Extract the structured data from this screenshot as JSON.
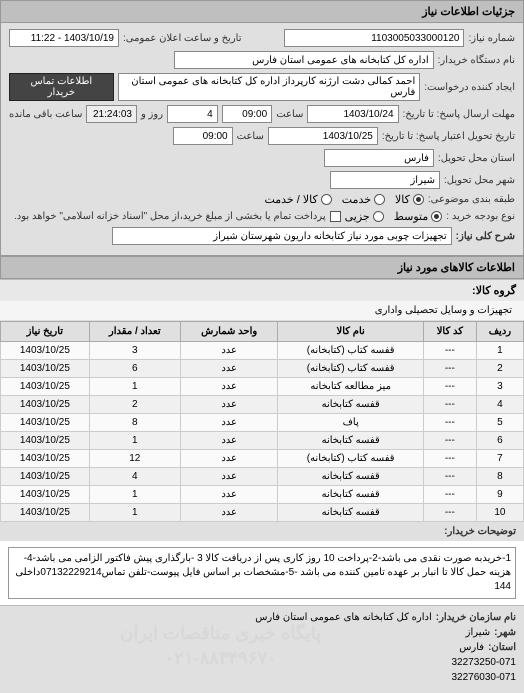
{
  "header": {
    "title": "جزئیات اطلاعات نیاز"
  },
  "form": {
    "need_number_label": "شماره نیاز:",
    "need_number": "1103005033000120",
    "announce_label": "تاریخ و ساعت اعلان عمومی:",
    "announce_value": "1403/10/19 - 11:22",
    "buyer_org_label": "نام دستگاه خریدار:",
    "buyer_org": "اداره کل کتابخانه های عمومی استان فارس",
    "requester_label": "ایجاد کننده درخواست:",
    "requester": "احمد  کمالی دشت ارژنه   کارپرداز اداره کل کتابخانه های عمومی استان فارس",
    "buyer_contact_btn": "اطلاعات تماس خریدار",
    "deadline_send_label": "مهلت ارسال پاسخ: تا تاریخ:",
    "deadline_send_date": "1403/10/24",
    "time_label": "ساعت",
    "deadline_send_time": "09:00",
    "remain_days": "4",
    "remain_label": "روز و",
    "remain_time": "21:24:03",
    "remain_suffix": "ساعت باقی مانده",
    "credit_label": "تاریخ تحویل اعتبار پاسخ: تا تاریخ:",
    "credit_date": "1403/10/25",
    "credit_time": "09:00",
    "delivery_province_label": "استان محل تحویل:",
    "delivery_province": "فارس",
    "delivery_city_label": "شهر محل تحویل:",
    "delivery_city": "شیراز",
    "category_label": "طبقه بندی موضوعی:",
    "radio_goods": "کالا",
    "radio_service": "خدمت",
    "radio_both": "کالا / خدمت",
    "purchase_type_label": "نوع بودجه خرید :",
    "radio_medium": "متوسط",
    "radio_small": "جزیی",
    "payment_note": "پرداخت تمام یا بخشی از مبلغ خرید،از محل \"اسناد خزانه اسلامی\" خواهد بود.",
    "need_desc_label": "شرح کلی نیاز:",
    "need_desc": "تجهیزات چوبی مورد نیاز کتابخانه داریون شهرستان شیراز"
  },
  "goods": {
    "section_title": "اطلاعات کالاهای مورد نیاز",
    "group_label": "گروه کالا:",
    "group_value": "تجهیزات و وسایل تحصیلی واداری",
    "columns": {
      "row": "ردیف",
      "code": "کد کالا",
      "name": "نام کالا",
      "unit": "واحد شمارش",
      "qty": "تعداد / مقدار",
      "date": "تاریخ نیاز"
    },
    "rows": [
      {
        "n": "1",
        "code": "---",
        "name": "قفسه کتاب (کتابخانه)",
        "unit": "عدد",
        "qty": "3",
        "date": "1403/10/25"
      },
      {
        "n": "2",
        "code": "---",
        "name": "قفسه کتاب (کتابخانه)",
        "unit": "عدد",
        "qty": "6",
        "date": "1403/10/25"
      },
      {
        "n": "3",
        "code": "---",
        "name": "میز مطالعه کتابخانه",
        "unit": "عدد",
        "qty": "1",
        "date": "1403/10/25"
      },
      {
        "n": "4",
        "code": "---",
        "name": "قفسه کتابخانه",
        "unit": "عدد",
        "qty": "2",
        "date": "1403/10/25"
      },
      {
        "n": "5",
        "code": "---",
        "name": "پاف",
        "unit": "عدد",
        "qty": "8",
        "date": "1403/10/25"
      },
      {
        "n": "6",
        "code": "---",
        "name": "قفسه کتابخانه",
        "unit": "عدد",
        "qty": "1",
        "date": "1403/10/25"
      },
      {
        "n": "7",
        "code": "---",
        "name": "قفسه کتاب (کتابخانه)",
        "unit": "عدد",
        "qty": "12",
        "date": "1403/10/25"
      },
      {
        "n": "8",
        "code": "---",
        "name": "قفسه کتابخانه",
        "unit": "عدد",
        "qty": "4",
        "date": "1403/10/25"
      },
      {
        "n": "9",
        "code": "---",
        "name": "قفسه کتابخانه",
        "unit": "عدد",
        "qty": "1",
        "date": "1403/10/25"
      },
      {
        "n": "10",
        "code": "---",
        "name": "قفسه کتابخانه",
        "unit": "عدد",
        "qty": "1",
        "date": "1403/10/25"
      }
    ]
  },
  "watermark": {
    "line1": "پایگاه خبری مناقصات ایران",
    "line2": "۰۲۱-۸۸۳۴۹۶۷۰"
  },
  "notes": {
    "label": "توضیحات خریدار:",
    "text": "1-خریدبه صورت نقدی می باشد-2-پرداخت 10 روز کاری پس از دریافت کالا 3 -بارگذاری پیش فاکتور الزامی می باشد-4-هزینه حمل کالا تا انبار بر عهده تامین کننده می باشد -5-مشخصات بر اساس فایل پیوست-تلفن تماس07132229214داخلی 144"
  },
  "buyer": {
    "title": "نام سازمان خریدار:",
    "org": "اداره کل کتابخانه های عمومی استان فارس",
    "city_label": "شهر:",
    "city": "شیراز",
    "province_label": "استان:",
    "province": "فارس",
    "phone1": "32273250-071",
    "phone2": "32276030-071"
  }
}
